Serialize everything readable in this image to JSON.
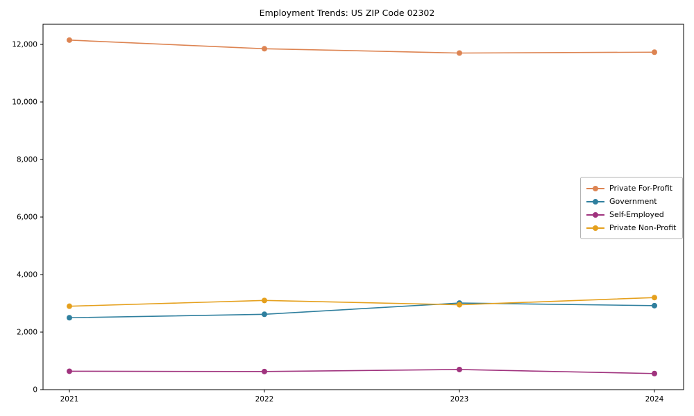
{
  "chart_data": {
    "type": "line",
    "title": "Employment Trends: US ZIP Code 02302",
    "xlabel": "",
    "ylabel": "",
    "categories": [
      "2021",
      "2022",
      "2023",
      "2024"
    ],
    "series": [
      {
        "name": "Private For-Profit",
        "color": "#dd8452",
        "values": [
          12150,
          11850,
          11700,
          11730
        ]
      },
      {
        "name": "Government",
        "color": "#2f7f9e",
        "values": [
          2500,
          2620,
          3010,
          2920
        ]
      },
      {
        "name": "Self-Employed",
        "color": "#a0337e",
        "values": [
          640,
          630,
          700,
          560
        ]
      },
      {
        "name": "Private Non-Profit",
        "color": "#e5a01d",
        "values": [
          2900,
          3100,
          2950,
          3200
        ]
      }
    ],
    "ylim": [
      0,
      12700
    ],
    "yticks": [
      0,
      2000,
      4000,
      6000,
      8000,
      10000,
      12000
    ],
    "grid": false,
    "legend_position": "center right"
  }
}
